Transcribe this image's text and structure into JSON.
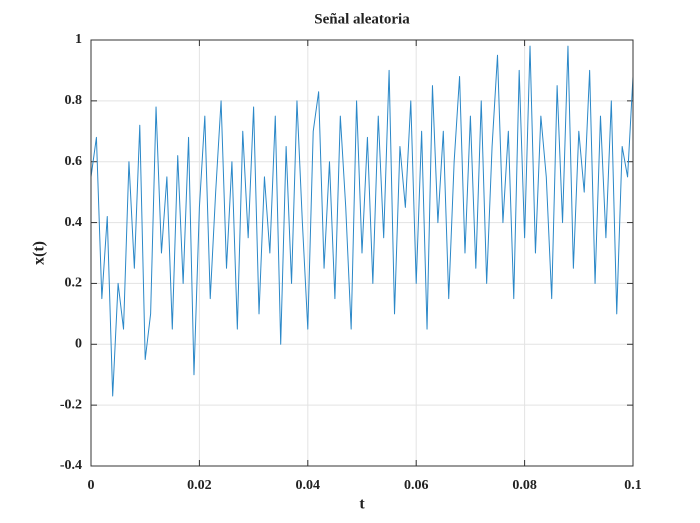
{
  "chart_data": {
    "type": "line",
    "title": "Señal aleatoria",
    "xlabel": "t",
    "ylabel": "x(t)",
    "x": [
      0,
      0.001,
      0.002,
      0.003,
      0.004,
      0.005,
      0.006,
      0.007,
      0.008,
      0.009,
      0.01,
      0.011,
      0.012,
      0.013,
      0.014,
      0.015,
      0.016,
      0.017,
      0.018,
      0.019,
      0.02,
      0.021,
      0.022,
      0.023,
      0.024,
      0.025,
      0.026,
      0.027,
      0.028,
      0.029,
      0.03,
      0.031,
      0.032,
      0.033,
      0.034,
      0.035,
      0.036,
      0.037,
      0.038,
      0.039,
      0.04,
      0.041,
      0.042,
      0.043,
      0.044,
      0.045,
      0.046,
      0.047,
      0.048,
      0.049,
      0.05,
      0.051,
      0.052,
      0.053,
      0.054,
      0.055,
      0.056,
      0.057,
      0.058,
      0.059,
      0.06,
      0.061,
      0.062,
      0.063,
      0.064,
      0.065,
      0.066,
      0.067,
      0.068,
      0.069,
      0.07,
      0.071,
      0.072,
      0.073,
      0.074,
      0.075,
      0.076,
      0.077,
      0.078,
      0.079,
      0.08,
      0.081,
      0.082,
      0.083,
      0.084,
      0.085,
      0.086,
      0.087,
      0.088,
      0.089,
      0.09,
      0.091,
      0.092,
      0.093,
      0.094,
      0.095,
      0.096,
      0.097,
      0.098,
      0.099,
      0.1
    ],
    "values": [
      0.55,
      0.68,
      0.15,
      0.42,
      -0.17,
      0.2,
      0.05,
      0.6,
      0.25,
      0.72,
      -0.05,
      0.1,
      0.78,
      0.3,
      0.55,
      0.05,
      0.62,
      0.2,
      0.68,
      -0.1,
      0.45,
      0.75,
      0.15,
      0.5,
      0.8,
      0.25,
      0.6,
      0.05,
      0.7,
      0.35,
      0.78,
      0.1,
      0.55,
      0.3,
      0.75,
      0.0,
      0.65,
      0.2,
      0.8,
      0.4,
      0.05,
      0.7,
      0.83,
      0.25,
      0.6,
      0.15,
      0.75,
      0.45,
      0.05,
      0.8,
      0.3,
      0.68,
      0.2,
      0.75,
      0.35,
      0.9,
      0.1,
      0.65,
      0.45,
      0.8,
      0.2,
      0.7,
      0.05,
      0.85,
      0.4,
      0.7,
      0.15,
      0.6,
      0.88,
      0.3,
      0.75,
      0.25,
      0.8,
      0.2,
      0.65,
      0.95,
      0.4,
      0.7,
      0.15,
      0.9,
      0.35,
      0.98,
      0.3,
      0.75,
      0.55,
      0.15,
      0.85,
      0.4,
      0.98,
      0.25,
      0.7,
      0.5,
      0.9,
      0.2,
      0.75,
      0.35,
      0.8,
      0.1,
      0.65,
      0.55,
      0.88
    ],
    "color": "#2b88c8",
    "xlim": [
      0,
      0.1
    ],
    "xticks": [
      0,
      0.02,
      0.04,
      0.06,
      0.08,
      0.1
    ],
    "ylim": [
      -0.4,
      1
    ],
    "yticks": [
      -0.4,
      -0.2,
      0,
      0.2,
      0.4,
      0.6,
      0.8,
      1
    ],
    "grid": true
  }
}
